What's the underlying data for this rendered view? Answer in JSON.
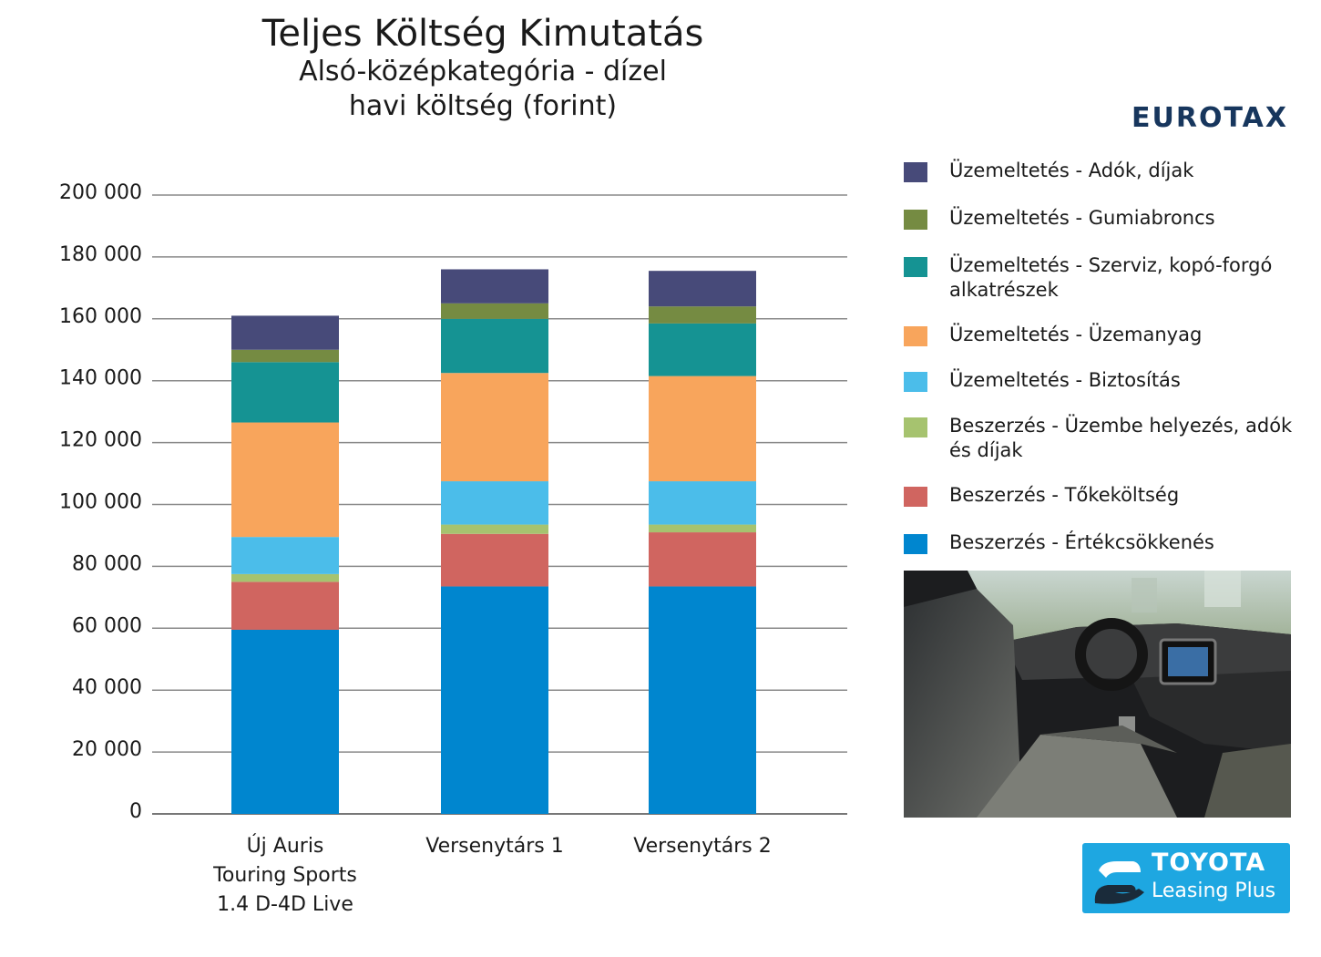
{
  "header": {
    "title": "Teljes Költség Kimutatás",
    "subtitle1": "Alsó-középkategória - dízel",
    "subtitle2": "havi költség (forint)"
  },
  "brand": {
    "eurotax": "EUROTAX"
  },
  "logo": {
    "line1": "TOYOTA",
    "line2": "Leasing Plus",
    "color": "#1ea7e1"
  },
  "photo": {
    "icon": "car-interior-image"
  },
  "chart_data": {
    "type": "bar",
    "stacked": true,
    "categories": [
      [
        "Új Auris",
        "Touring Sports",
        "1.4 D-4D Live"
      ],
      [
        "Versenytárs 1"
      ],
      [
        "Versenytárs 2"
      ]
    ],
    "y_ticks": [
      "0",
      "20 000",
      "40 000",
      "60 000",
      "80 000",
      "100 000",
      "120 000",
      "140 000",
      "160 000",
      "180 000",
      "200 000"
    ],
    "ylim": [
      0,
      200000
    ],
    "grid": true,
    "legend_position": "right",
    "series": [
      {
        "name": "Beszerzés - Értékcsökkenés",
        "color": "#0086cf",
        "values": [
          59500,
          73500,
          73500
        ]
      },
      {
        "name": "Beszerzés - Tőkeköltség",
        "color": "#d06560",
        "values": [
          15500,
          17000,
          17500
        ]
      },
      {
        "name": "Beszerzés - Üzembe helyezés, adók és díjak",
        "color": "#a6c36f",
        "values": [
          2500,
          3000,
          2500
        ]
      },
      {
        "name": "Üzemeltetés - Biztosítás",
        "color": "#4bbdea",
        "values": [
          12000,
          14000,
          14000
        ]
      },
      {
        "name": "Üzemeltetés - Üzemanyag",
        "color": "#f8a55c",
        "values": [
          37000,
          35000,
          34000
        ]
      },
      {
        "name": "Üzemeltetés - Szerviz, kopó-forgó alkatrészek",
        "color": "#159393",
        "values": [
          19500,
          17500,
          17000
        ]
      },
      {
        "name": "Üzemeltetés - Gumiabroncs",
        "color": "#758b42",
        "values": [
          4000,
          5000,
          5500
        ]
      },
      {
        "name": "Üzemeltetés - Adók, díjak",
        "color": "#474a79",
        "values": [
          11000,
          11000,
          11500
        ]
      }
    ]
  }
}
